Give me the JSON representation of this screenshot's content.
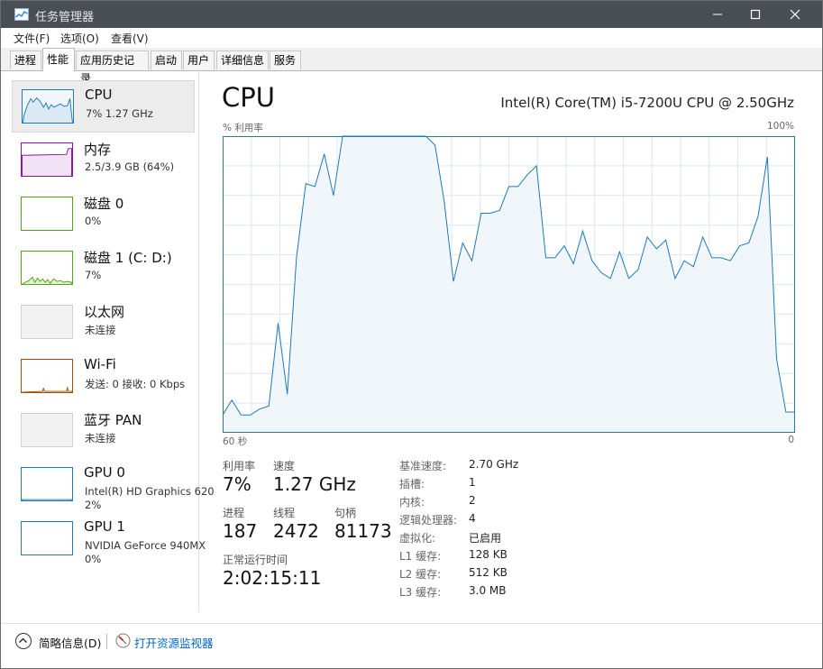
{
  "window": {
    "title": "任务管理器"
  },
  "menu": [
    "文件(F)",
    "选项(O)",
    "查看(V)"
  ],
  "tabs": [
    "进程",
    "性能",
    "应用历史记录",
    "启动",
    "用户",
    "详细信息",
    "服务"
  ],
  "active_tab": "性能",
  "sidebar": [
    {
      "name": "CPU",
      "sub": "7% 1.27 GHz",
      "color": "#1e7ab8"
    },
    {
      "name": "内存",
      "sub": "2.5/3.9 GB (64%)",
      "color": "#8b12ae"
    },
    {
      "name": "磁盘 0",
      "sub": "0%",
      "color": "#4da60c"
    },
    {
      "name": "磁盘 1 (C: D:)",
      "sub": "7%",
      "color": "#4da60c"
    },
    {
      "name": "以太网",
      "sub": "未连接",
      "color": "#a0a0a0"
    },
    {
      "name": "Wi-Fi",
      "sub": "发送: 0 接收: 0 Kbps",
      "color": "#a74f01"
    },
    {
      "name": "蓝牙 PAN",
      "sub": "未连接",
      "color": "#a0a0a0"
    },
    {
      "name": "GPU 0",
      "sub": "Intel(R) HD Graphics 620",
      "sub2": "2%",
      "color": "#1e7ab8"
    },
    {
      "name": "GPU 1",
      "sub": "NVIDIA GeForce 940MX",
      "sub2": "0%",
      "color": "#1e7ab8"
    }
  ],
  "main": {
    "title": "CPU",
    "model": "Intel(R) Core(TM) i5-7200U CPU @ 2.50GHz",
    "axis_top_left": "% 利用率",
    "axis_top_right": "100%",
    "axis_bottom_left": "60 秒",
    "axis_bottom_right": "0",
    "utilization_label": "利用率",
    "utilization": "7%",
    "speed_label": "速度",
    "speed": "1.27 GHz",
    "processes_label": "进程",
    "processes": "187",
    "threads_label": "线程",
    "threads": "2472",
    "handles_label": "句柄",
    "handles": "81173",
    "uptime_label": "正常运行时间",
    "uptime": "2:02:15:11",
    "specs": [
      {
        "label": "基准速度:",
        "value": "2.70 GHz"
      },
      {
        "label": "插槽:",
        "value": "1"
      },
      {
        "label": "内核:",
        "value": "2"
      },
      {
        "label": "逻辑处理器:",
        "value": "4"
      },
      {
        "label": "虚拟化:",
        "value": "已启用"
      },
      {
        "label": "L1 缓存:",
        "value": "128 KB"
      },
      {
        "label": "L2 缓存:",
        "value": "512 KB"
      },
      {
        "label": "L3 缓存:",
        "value": "3.0 MB"
      }
    ]
  },
  "chart_data": {
    "type": "area",
    "ylim": [
      0,
      100
    ],
    "values": [
      6,
      11,
      6,
      6,
      8,
      9,
      37,
      13,
      59,
      84,
      83,
      94,
      80,
      100,
      100,
      100,
      100,
      100,
      100,
      100,
      100,
      100,
      100,
      97,
      78,
      51,
      64,
      58,
      74,
      74,
      75,
      83,
      83,
      87,
      90,
      59,
      59,
      63,
      57,
      68,
      58,
      54,
      52,
      61,
      52,
      55,
      66,
      62,
      65,
      52,
      58,
      56,
      66,
      59,
      59,
      58,
      63,
      64,
      73,
      93,
      25,
      7,
      7
    ]
  },
  "footer": {
    "fewer": "简略信息(D)",
    "resmon": "打开资源监视器"
  }
}
